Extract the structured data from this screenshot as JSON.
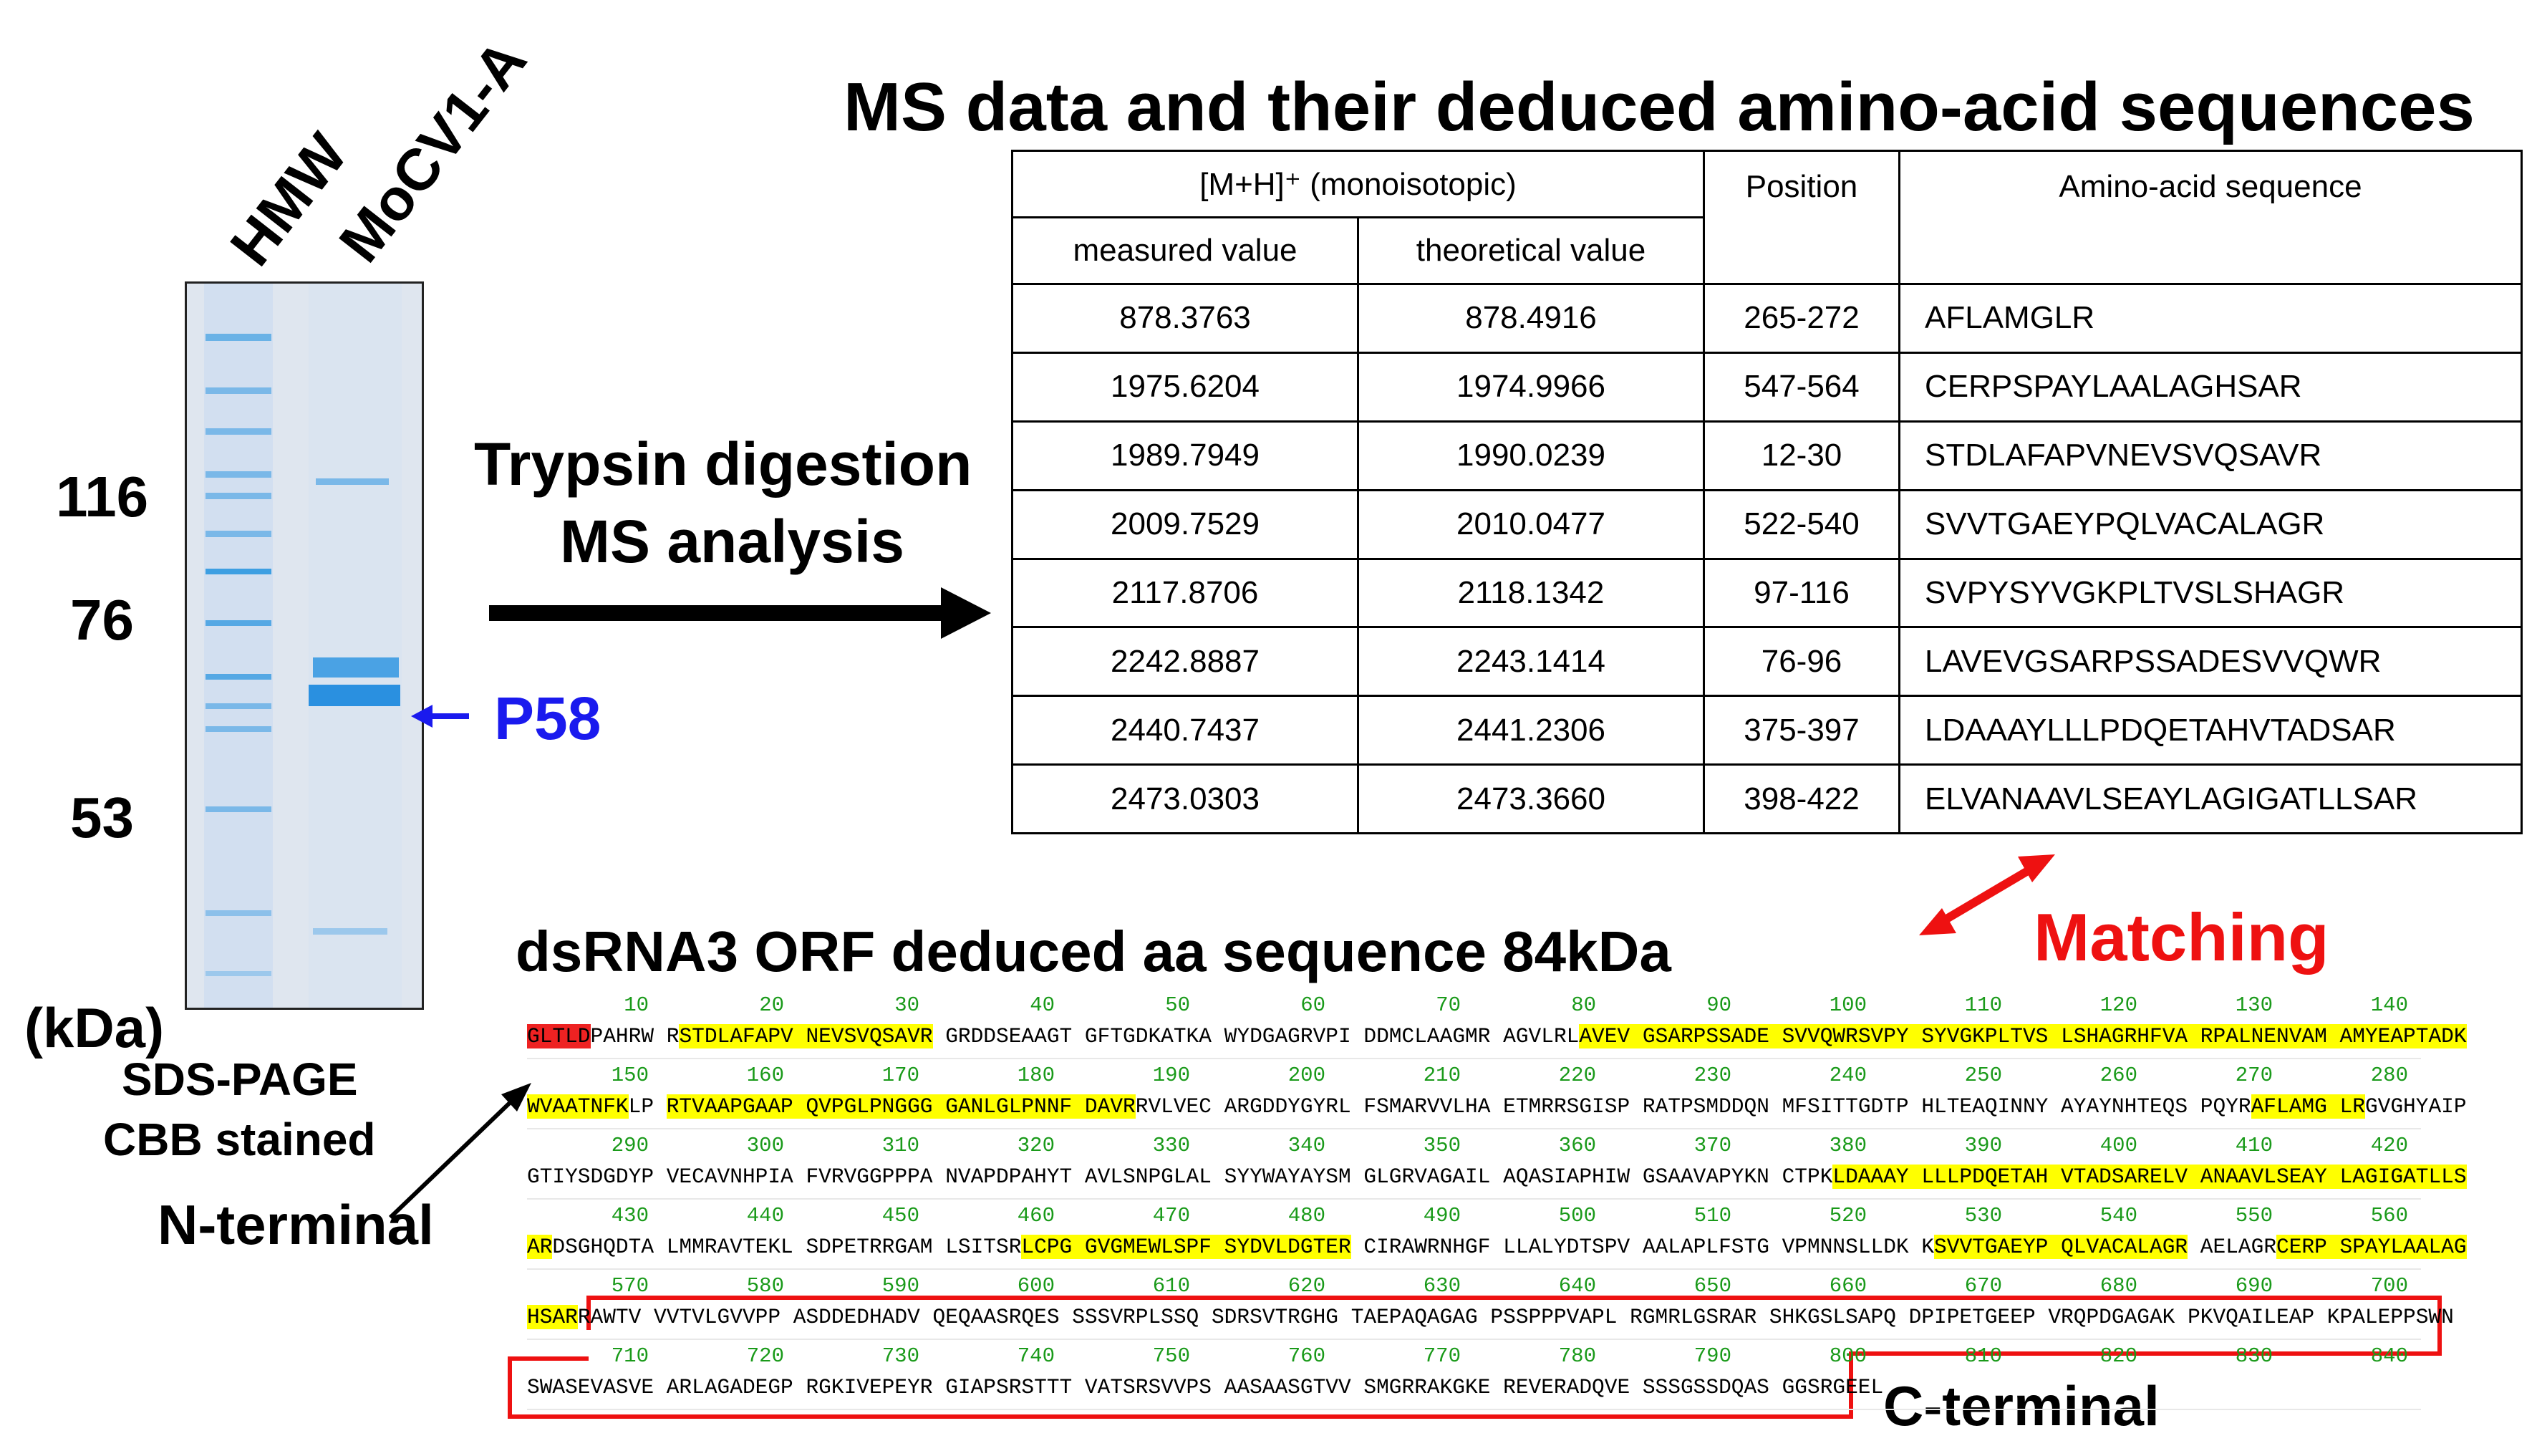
{
  "gel": {
    "lane_labels": [
      "HMW",
      "MoCV1-A"
    ],
    "mw_labels": [
      "116",
      "76",
      "53"
    ],
    "unit": "(kDa)",
    "caption_line1": "SDS-PAGE",
    "caption_line2": "CBB stained",
    "band_label": "P58"
  },
  "flow": {
    "step1": "Trypsin digestion",
    "step2": "MS analysis"
  },
  "ms_title": "MS data and their deduced amino-acid sequences",
  "ms_table": {
    "header_group": "[M+H]⁺ (monoisotopic)",
    "col_measured": "measured value",
    "col_theoretical": "theoretical value",
    "col_position": "Position",
    "col_sequence": "Amino-acid sequence",
    "rows": [
      {
        "measured": "878.3763",
        "theoretical": "878.4916",
        "position": "265-272",
        "sequence": "AFLAMGLR"
      },
      {
        "measured": "1975.6204",
        "theoretical": "1974.9966",
        "position": "547-564",
        "sequence": "CERPSPAYLAALAGHSAR"
      },
      {
        "measured": "1989.7949",
        "theoretical": "1990.0239",
        "position": "12-30",
        "sequence": "STDLAFAPVNEVSVQSAVR"
      },
      {
        "measured": "2009.7529",
        "theoretical": "2010.0477",
        "position": "522-540",
        "sequence": "SVVTGAEYPQLVACALAGR"
      },
      {
        "measured": "2117.8706",
        "theoretical": "2118.1342",
        "position": "97-116",
        "sequence": "SVPYSYVGKPLTVSLSHAGR"
      },
      {
        "measured": "2242.8887",
        "theoretical": "2243.1414",
        "position": "76-96",
        "sequence": "LAVEVGSARPSSADESVVQWR"
      },
      {
        "measured": "2440.7437",
        "theoretical": "2441.2306",
        "position": "375-397",
        "sequence": "LDAAAYLLLPDQETAHVTADSAR"
      },
      {
        "measured": "2473.0303",
        "theoretical": "2473.3660",
        "position": "398-422",
        "sequence": "ELVANAAVLSEAYLAGIGATLLSAR"
      }
    ]
  },
  "matching_label": "Matching",
  "orf_title": "dsRNA3 ORF deduced aa sequence 84kDa",
  "n_terminal_label": "N-terminal",
  "c_terminal_label": "C-terminal",
  "sequence_blocks": [
    {
      "numbers": [
        "10",
        "20",
        "30",
        "40",
        "50",
        "60",
        "70",
        "80",
        "90",
        "100",
        "110",
        "120",
        "130",
        "140"
      ],
      "segments": [
        {
          "t": "GLTLD",
          "s": "red"
        },
        {
          "t": "PAHRW R",
          "s": ""
        },
        {
          "t": "STDLAFAPV NEVSVQSAVR",
          "s": "hl"
        },
        {
          "t": " GRDDSEAAGT GFTGDKATKA WYDGAGRVPI DDMCLAAGMR AGVLRL",
          "s": ""
        },
        {
          "t": "AVEV GSARPSSADE SVVQWRSVPY SYVGKPLTVS LSHAGRHFVA RPALNENVAM AMYEAPTADK",
          "s": "hl"
        }
      ]
    },
    {
      "numbers": [
        "150",
        "160",
        "170",
        "180",
        "190",
        "200",
        "210",
        "220",
        "230",
        "240",
        "250",
        "260",
        "270",
        "280"
      ],
      "segments": [
        {
          "t": "WVAATNFK",
          "s": "hl"
        },
        {
          "t": "LP ",
          "s": ""
        },
        {
          "t": "RTVAAPGAAP QVPGLPNGGG GANLGLPNNF DAVR",
          "s": "hl"
        },
        {
          "t": "RVLVEC ARGDDYGYRL FSMARVVLHA ETMRRSGISP RATPSMDDQN MFSITTGDTP HLTEAQINNY AYAYNHTEQS PQYR",
          "s": ""
        },
        {
          "t": "AFLAMG LR",
          "s": "hl"
        },
        {
          "t": "GVGHYAIP",
          "s": ""
        }
      ]
    },
    {
      "numbers": [
        "290",
        "300",
        "310",
        "320",
        "330",
        "340",
        "350",
        "360",
        "370",
        "380",
        "390",
        "400",
        "410",
        "420"
      ],
      "segments": [
        {
          "t": "GTIYSDGDYP VECAVNHPIA FVRVGGPPPA NVAPDPAHYT AVLSNPGLAL SYYWAYAYSM GLGRVAGAIL AQASIAPHIW GSAAVAPYKN CTPK",
          "s": ""
        },
        {
          "t": "LDAAAY LLLPDQETAH VTADSARELV ANAAVLSEAY LAGIGATLLS",
          "s": "hl"
        }
      ]
    },
    {
      "numbers": [
        "430",
        "440",
        "450",
        "460",
        "470",
        "480",
        "490",
        "500",
        "510",
        "520",
        "530",
        "540",
        "550",
        "560"
      ],
      "segments": [
        {
          "t": "AR",
          "s": "hl"
        },
        {
          "t": "DSGHQDTA LMMRAVTEKL SDPETRRGAM LSITSR",
          "s": ""
        },
        {
          "t": "LCPG GVGMEWLSPF SYDVLDGTER",
          "s": "hl"
        },
        {
          "t": " CIRAWRNHGF LLALYDTSPV AALAPLFSTG VPMNNSLLDK K",
          "s": ""
        },
        {
          "t": "SVVTGAEYP QLVACALAGR",
          "s": "hl"
        },
        {
          "t": " AELAGR",
          "s": ""
        },
        {
          "t": "CERP SPAYLAALAG",
          "s": "hl"
        }
      ]
    },
    {
      "numbers": [
        "570",
        "580",
        "590",
        "600",
        "610",
        "620",
        "630",
        "640",
        "650",
        "660",
        "670",
        "680",
        "690",
        "700"
      ],
      "segments": [
        {
          "t": "HSAR",
          "s": "hl"
        },
        {
          "t": "RAWTV VVTVLGVVPP ASDDEDHADV QEQAASRQES SSSVRPLSSQ SDRSVTRGHG TAEPAQAGAG PSSPPPVAPL RGMRLGSRAR SHKGSLSAPQ DPIPETGEEP VRQPDGAGAK PKVQAILEAP KPALEPPSWN",
          "s": ""
        }
      ]
    },
    {
      "numbers": [
        "710",
        "720",
        "730",
        "740",
        "750",
        "760",
        "770",
        "780",
        "790",
        "800",
        "810",
        "820",
        "830",
        "840"
      ],
      "segments": [
        {
          "t": "SWASEVASVE ARLAGADEGP RGKIVEPEYR GIAPSRSTTT VATSRSVVPS AASAASGTVV SMGRRAKGKE REVERADQVE SSSGSSDQAS GGSRGEEL",
          "s": ""
        }
      ]
    }
  ],
  "colors": {
    "band_blue": "#1a1aee",
    "matching_red": "#ee1111",
    "highlight": "#ffff00",
    "number_green": "#1a9a1a",
    "gel_bg": "#dde4ee",
    "lane_blue": "#3da0e0"
  }
}
